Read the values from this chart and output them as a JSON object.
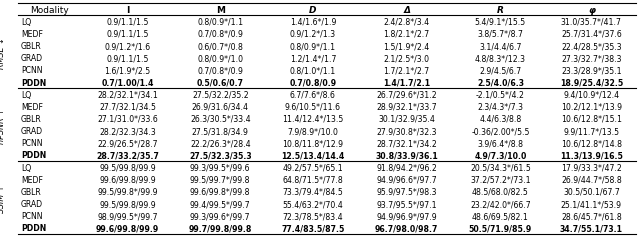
{
  "header": [
    "Modality",
    "I",
    "M",
    "D",
    "Δ",
    "R",
    "φ"
  ],
  "col_italic": [
    false,
    false,
    false,
    true,
    true,
    true,
    true
  ],
  "col_bold": [
    false,
    true,
    true,
    true,
    true,
    true,
    true
  ],
  "sections": [
    {
      "metric": "RMSE",
      "arrow": "↓",
      "rows": [
        [
          "LQ",
          "0.9/1.1/1.5",
          "0.8/0.9*/1.1",
          "1.4/1.6*/1.9",
          "2.4/2.8*/3.4",
          "5.4/9.1*/15.5",
          "31.0/35.7*/41.7"
        ],
        [
          "MEDF",
          "0.9/1.1/1.5",
          "0.7/0.8*/0.9",
          "0.9/1.2*/1.3",
          "1.8/2.1*/2.7",
          "3.8/5.7*/8.7",
          "25.7/31.4*/37.6"
        ],
        [
          "GBLR",
          "0.9/1.2*/1.6",
          "0.6/0.7*/0.8",
          "0.8/0.9*/1.1",
          "1.5/1.9*/2.4",
          "3.1/4.4/6.7",
          "22.4/28.5*/35.3"
        ],
        [
          "GRAD",
          "0.9/1.1/1.5",
          "0.8/0.9*/1.0",
          "1.2/1.4*/1.7",
          "2.1/2.5*/3.0",
          "4.8/8.3*/12.3",
          "27.3/32.7*/38.3"
        ],
        [
          "PCNN",
          "1.6/1.9*/2.5",
          "0.7/0.8*/0.9",
          "0.8/1.0*/1.1",
          "1.7/2.1*/2.7",
          "2.9/4.5/6.7",
          "23.3/28.9*/35.1"
        ],
        [
          "PDDN",
          "0.7/1.00/1.4",
          "0.5/0.6/0.7",
          "0.7/0.8/0.9",
          "1.4/1.7/2.1",
          "2.5/4.0/6.3",
          "18.9/25.4/32.5"
        ]
      ],
      "bold_row": 5
    },
    {
      "metric": "nPSNR",
      "arrow": "↑",
      "rows": [
        [
          "LQ",
          "28.2/32.1*/34.1",
          "27.5/32.2/35.2",
          "6.7/7.6*/8.6",
          "26.7/29.6*/31.2",
          "-2.1/0.5*/4.2",
          "9.4/10.9*/12.4"
        ],
        [
          "MEDF",
          "27.7/32.1/34.5",
          "26.9/31.6/34.4",
          "9.6/10.5*/11.6",
          "28.9/32.1*/33.7",
          "2.3/4.3*/7.3",
          "10.2/12.1*/13.9"
        ],
        [
          "GBLR",
          "27.1/31.0*/33.6",
          "26.3/30.5*/33.4",
          "11.4/12.4*/13.5",
          "30.1/32.9/35.4",
          "4.4/6.3/8.8",
          "10.6/12.8*/15.1"
        ],
        [
          "GRAD",
          "28.2/32.3/34.3",
          "27.5/31.8/34.9",
          "7.9/8.9*/10.0",
          "27.9/30.8*/32.3",
          "-0.36/2.00*/5.5",
          "9.9/11.7*/13.5"
        ],
        [
          "PCNN",
          "22.9/26.5*/28.7",
          "22.2/26.3*/28.4",
          "10.8/11.8*/12.9",
          "28.7/32.1*/34.2",
          "3.9/6.4*/8.8",
          "10.6/12.8*/14.8"
        ],
        [
          "PDDN",
          "28.7/33.2/35.7",
          "27.5/32.3/35.3",
          "12.5/13.4/14.4",
          "30.8/33.9/36.1",
          "4.9/7.3/10.0",
          "11.3/13.9/16.5"
        ]
      ],
      "bold_row": 5
    },
    {
      "metric": "SSIM",
      "arrow": "↑",
      "rows": [
        [
          "LQ",
          "99.5/99.8/99.9",
          "99.3/99.5*/99.6",
          "49.2/57.5*/65.1",
          "91.8/94.2*/96.2",
          "20.5/34.3*/61.5",
          "17.9/33.3*/47.2"
        ],
        [
          "MEDF",
          "99.6/99.8/99.9",
          "99.5/99.7*/99.8",
          "64.8/71.5*/77.8",
          "94.9/96.6*/97.7",
          "37.2/57.2*/73.1",
          "26.9/44.7*/58.8"
        ],
        [
          "GBLR",
          "99.5/99.8*/99.9",
          "99.6/99.8*/99.8",
          "73.3/79.4*/84.5",
          "95.9/97.5*/98.3",
          "48.5/68.0/82.5",
          "30.5/50.1/67.7"
        ],
        [
          "GRAD",
          "99.5/99.8/99.9",
          "99.4/99.5*/99.7",
          "55.4/63.2*/70.4",
          "93.7/95.5*/97.1",
          "23.2/42.0*/66.7",
          "25.1/41.1*/53.9"
        ],
        [
          "PCNN",
          "98.9/99.5*/99.7",
          "99.3/99.6*/99.7",
          "72.3/78.5*/83.4",
          "94.9/96.9*/97.9",
          "48.6/69.5/82.1",
          "28.6/45.7*/61.8"
        ],
        [
          "PDDN",
          "99.6/99.8/99.9",
          "99.7/99.8/99.8",
          "77.4/83.5/87.5",
          "96.7/98.0/98.7",
          "50.5/71.9/85.9",
          "34.7/55.1/73.1"
        ]
      ],
      "bold_row": 5
    }
  ]
}
